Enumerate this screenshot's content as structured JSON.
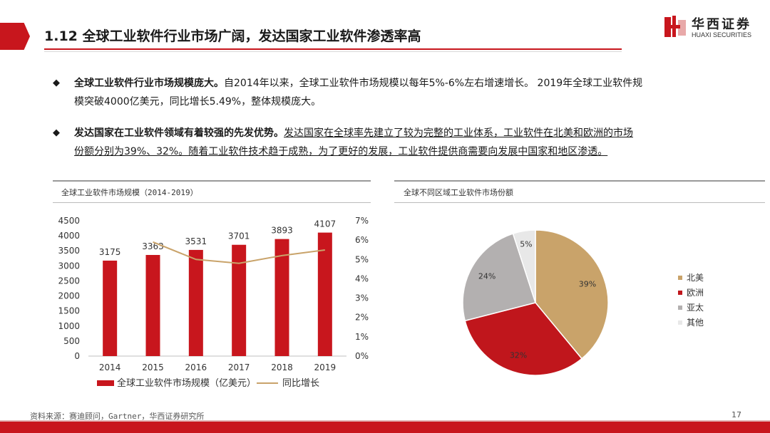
{
  "header": {
    "title": "1.12 全球工业软件行业市场广阔，发达国家工业软件渗透率高",
    "logo_cn": "华西证券",
    "logo_en": "HUAXI SECURITIES"
  },
  "bullets": [
    {
      "bold": "全球工业软件行业市场规模庞大。",
      "text_line1": "自2014年以来，全球工业软件市场规模以每年5%-6%左右增速增长。 2019年全球工业软件规",
      "text_line2": "模突破4000亿美元，同比增长5.49%，整体规模庞大。"
    },
    {
      "bold": "发达国家在工业软件领域有着较强的先发优势。",
      "text_line1": "发达国家在全球率先建立了较为完整的工业体系，工业软件在北美和欧洲的市场",
      "text_line2": "份额分别为39%、32%。随着工业软件技术趋于成熟，为了更好的发展，工业软件提供商需要向发展中国家和地区渗透。"
    }
  ],
  "chart_left_title": "全球工业软件市场规模（2014-2019）",
  "chart_right_title": "全球不同区域工业软件市场份额",
  "chart_data": [
    {
      "type": "bar",
      "categories": [
        "2014",
        "2015",
        "2016",
        "2017",
        "2018",
        "2019"
      ],
      "series": [
        {
          "name": "全球工业软件市场规模（亿美元）",
          "values": [
            3175,
            3363,
            3531,
            3701,
            3893,
            4107
          ],
          "color": "#c8161d"
        },
        {
          "name": "同比增长",
          "type": "line",
          "axis": "right",
          "values": [
            null,
            5.9,
            5.0,
            4.8,
            5.2,
            5.49
          ],
          "color": "#c9a36a"
        }
      ],
      "ylim": [
        0,
        4500
      ],
      "yticks": [
        "0",
        "500",
        "1000",
        "1500",
        "2000",
        "2500",
        "3000",
        "3500",
        "4000",
        "4500"
      ],
      "y2lim": [
        0,
        7
      ],
      "y2ticks": [
        "0%",
        "1%",
        "2%",
        "3%",
        "4%",
        "5%",
        "6%",
        "7%"
      ],
      "data_labels": [
        "3175",
        "3363",
        "3531",
        "3701",
        "3893",
        "4107"
      ],
      "legend_position": "bottom"
    },
    {
      "type": "pie",
      "slices": [
        {
          "name": "北美",
          "value": 39,
          "label": "39%",
          "color": "#c9a36a"
        },
        {
          "name": "欧洲",
          "value": 32,
          "label": "32%",
          "color": "#c0161c"
        },
        {
          "name": "亚太",
          "value": 24,
          "label": "24%",
          "color": "#b3b0b0"
        },
        {
          "name": "其他",
          "value": 5,
          "label": "5%",
          "color": "#e8e8e8"
        }
      ],
      "legend_position": "right"
    }
  ],
  "footer": {
    "source": "资料来源：赛迪顾问，Gartner，华西证券研究所",
    "page": "17"
  }
}
